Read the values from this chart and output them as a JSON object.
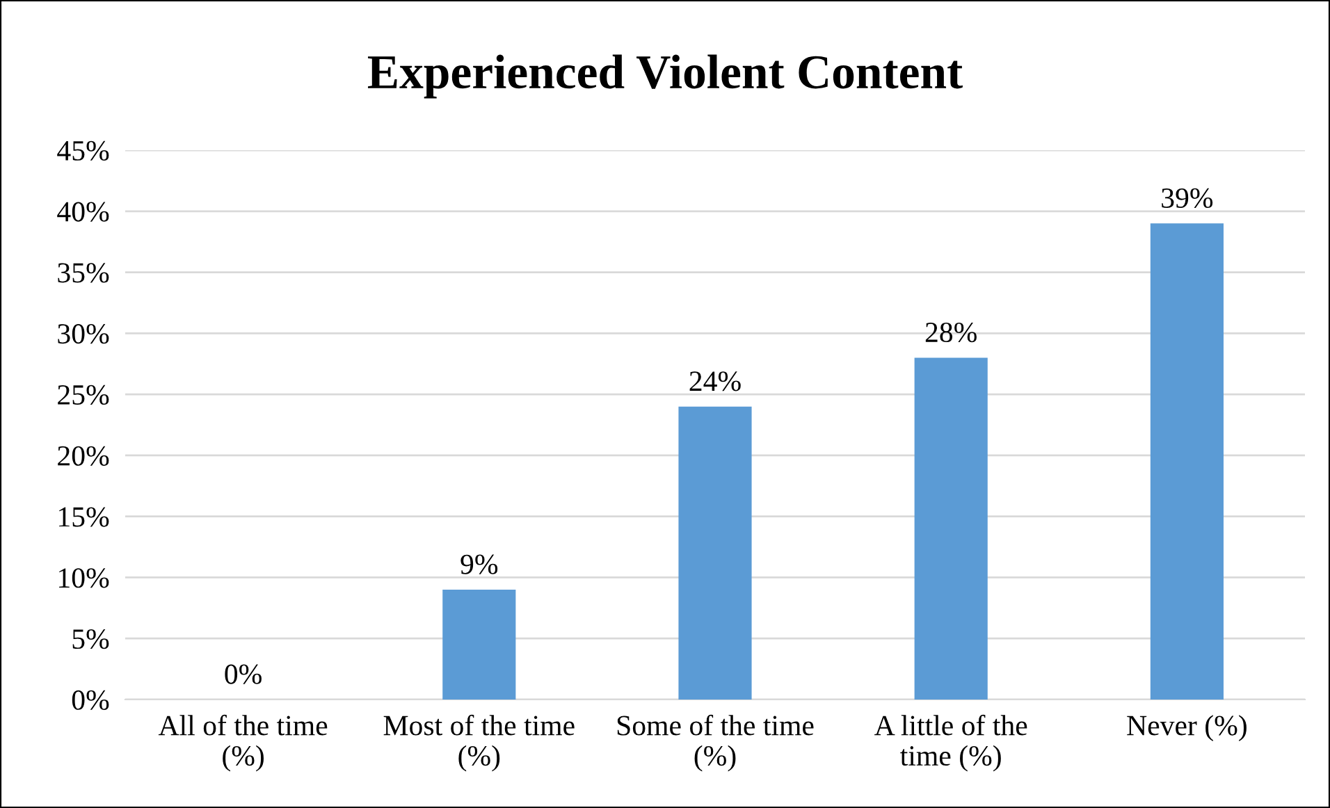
{
  "chart_data": {
    "type": "bar",
    "title": "Experienced Violent Content",
    "categories": [
      "All of the time\n(%)",
      "Most of the time\n(%)",
      "Some of the time\n(%)",
      "A little of the\ntime (%)",
      "Never (%)"
    ],
    "values": [
      0,
      9,
      24,
      28,
      39
    ],
    "value_labels": [
      "0%",
      "9%",
      "24%",
      "28%",
      "39%"
    ],
    "color": "#5b9bd5",
    "ylim": [
      0,
      45
    ],
    "yticks": [
      {
        "value": 0,
        "label": "0%"
      },
      {
        "value": 5,
        "label": "5%"
      },
      {
        "value": 10,
        "label": "10%"
      },
      {
        "value": 15,
        "label": "15%"
      },
      {
        "value": 20,
        "label": "20%"
      },
      {
        "value": 25,
        "label": "25%"
      },
      {
        "value": 30,
        "label": "30%"
      },
      {
        "value": 35,
        "label": "35%"
      },
      {
        "value": 40,
        "label": "40%"
      },
      {
        "value": 45,
        "label": "45%"
      }
    ],
    "grid": "y",
    "legend": false
  }
}
